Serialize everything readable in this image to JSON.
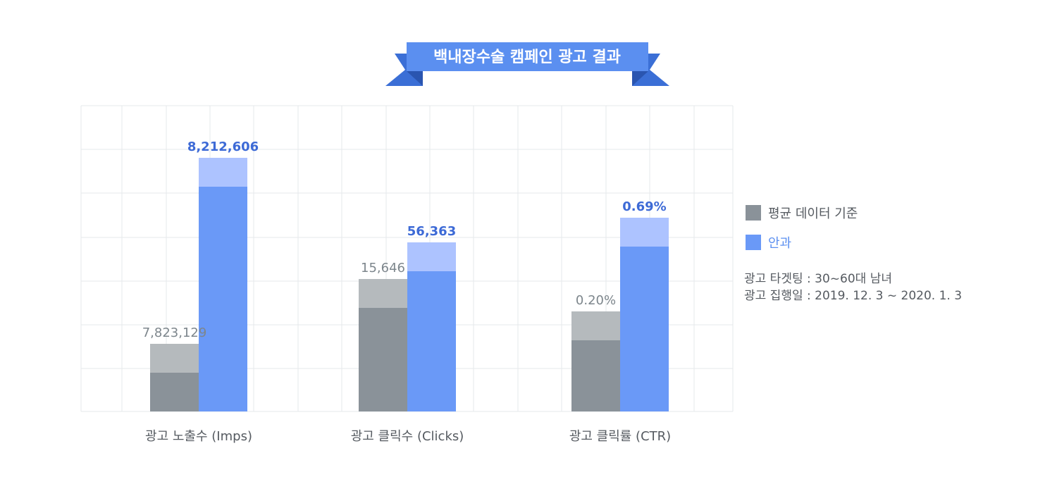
{
  "title": "백내장수술 캠페인 광고 결과",
  "colors": {
    "ribbon": "#5b8ff0",
    "ribbon_tail": "#3b6fd6",
    "avg_dark": "#8a9299",
    "avg_light": "#b5babd",
    "result_dark": "#6a99f7",
    "result_light": "#adc3ff",
    "avg_text": "#7d868c",
    "result_text": "#3d6ad6",
    "grid": "#e5e8eb"
  },
  "legend": {
    "avg": "평균 데이터 기준",
    "result": "안과"
  },
  "notes": [
    "광고 타겟팅 : 30~60대 남녀",
    "광고 집행일 : 2019. 12. 3 ~ 2020. 1. 3"
  ],
  "chart_data": {
    "type": "bar",
    "categories": [
      "광고 노출수 (Imps)",
      "광고 클릭수 (Clicks)",
      "광고 클릭률 (CTR)"
    ],
    "series": [
      {
        "name": "평균 데이터 기준",
        "values": [
          7823129,
          15646,
          0.2
        ],
        "labels": [
          "7,823,129",
          "15,646",
          "0.20%"
        ]
      },
      {
        "name": "안과",
        "values": [
          8212606,
          56363,
          0.69
        ],
        "labels": [
          "8,212,606",
          "56,363",
          "0.69%"
        ]
      }
    ],
    "legend_position": "right",
    "grid": true
  }
}
